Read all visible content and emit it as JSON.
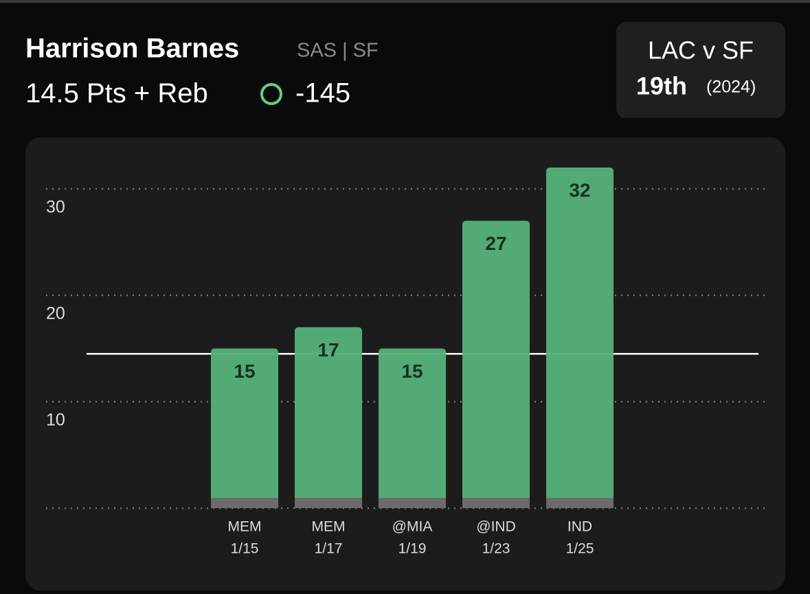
{
  "header": {
    "name": "Harrison Barnes",
    "team": "SAS | SF",
    "odds": -145
  },
  "matchup": {
    "title": "LAC v SF",
    "rank": "19th",
    "season": "(2024)"
  },
  "chart_data": {
    "type": "bar",
    "line": 14.5,
    "stat": "Pts + Reb",
    "categories": [
      "MEM",
      "MEM",
      "@MIA",
      "@IND",
      "IND"
    ],
    "dates": [
      "1/15",
      "1/17",
      "1/19",
      "1/23",
      "1/25"
    ],
    "values": [
      15,
      17,
      15,
      27,
      32
    ],
    "color": "#55b07a",
    "ylim": [
      0,
      34
    ],
    "yticks": [
      10,
      20,
      30
    ],
    "grid": true
  }
}
